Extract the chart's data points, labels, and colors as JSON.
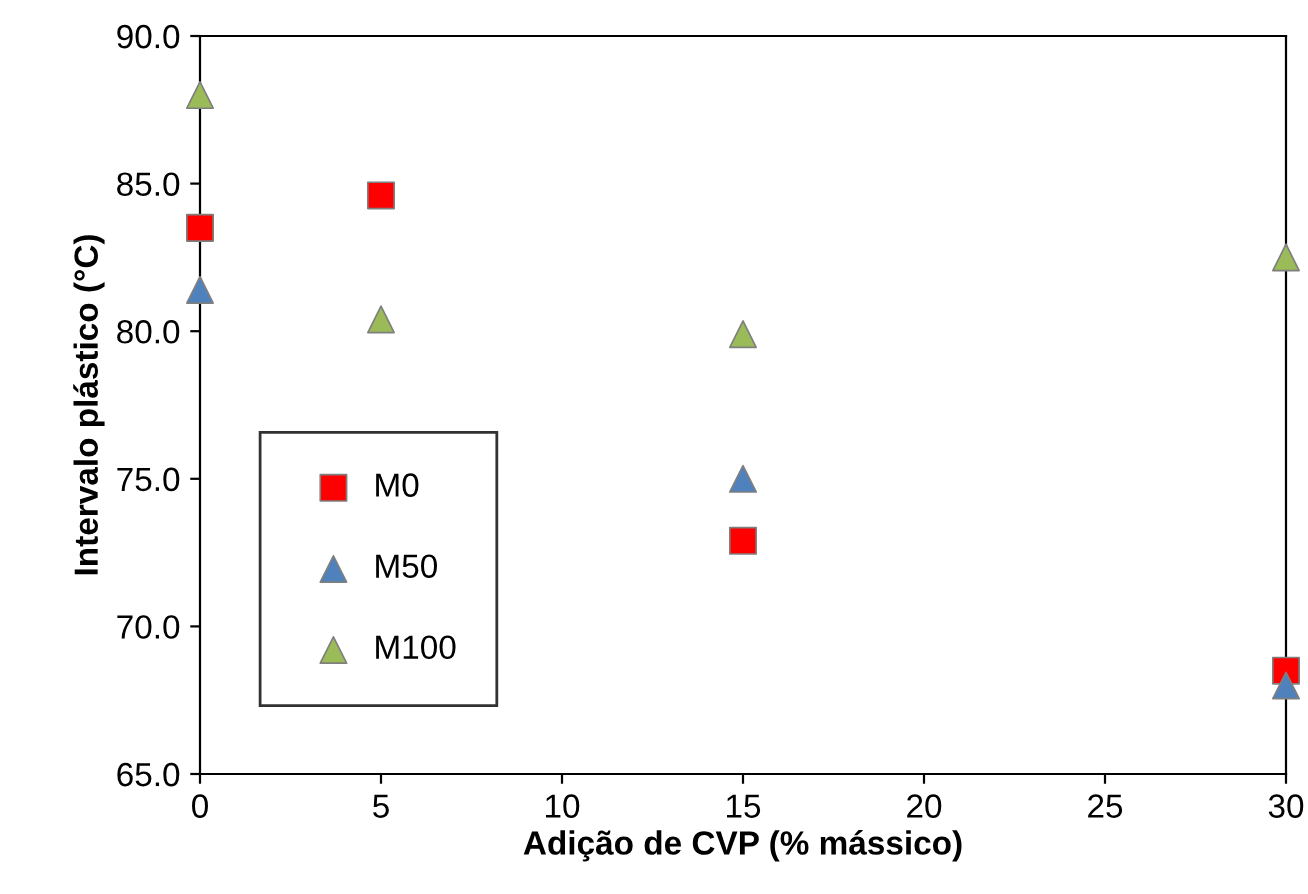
{
  "chart_data": {
    "type": "scatter",
    "xlabel": "Adição de CVP (% mássico)",
    "ylabel": "Intervalo plástico (°C)",
    "xlim": [
      0,
      30
    ],
    "xticks": [
      0,
      5,
      10,
      15,
      20,
      25,
      30
    ],
    "ylim": [
      65,
      90
    ],
    "yticks": [
      {
        "value": 65,
        "label": "65.0"
      },
      {
        "value": 70,
        "label": "70.0"
      },
      {
        "value": 75,
        "label": "75.0"
      },
      {
        "value": 80,
        "label": "80.0"
      },
      {
        "value": 85,
        "label": "85.0"
      },
      {
        "value": 90,
        "label": "90.0"
      }
    ],
    "grid": false,
    "legend": "bottom left",
    "series": [
      {
        "name": "M0",
        "color": "#ff0000",
        "marker": "square",
        "x": [
          0,
          5,
          15,
          30
        ],
        "values": [
          83.5,
          84.6,
          72.9,
          68.5
        ]
      },
      {
        "name": "M50",
        "color": "#4f81bd",
        "marker": "triangle",
        "x": [
          0,
          15,
          30
        ],
        "values": [
          81.4,
          75.0,
          68.0
        ]
      },
      {
        "name": "M100",
        "color": "#9bbb59",
        "marker": "triangle",
        "x": [
          0,
          5,
          15,
          30
        ],
        "values": [
          88.0,
          80.4,
          79.9,
          82.5
        ]
      }
    ]
  }
}
